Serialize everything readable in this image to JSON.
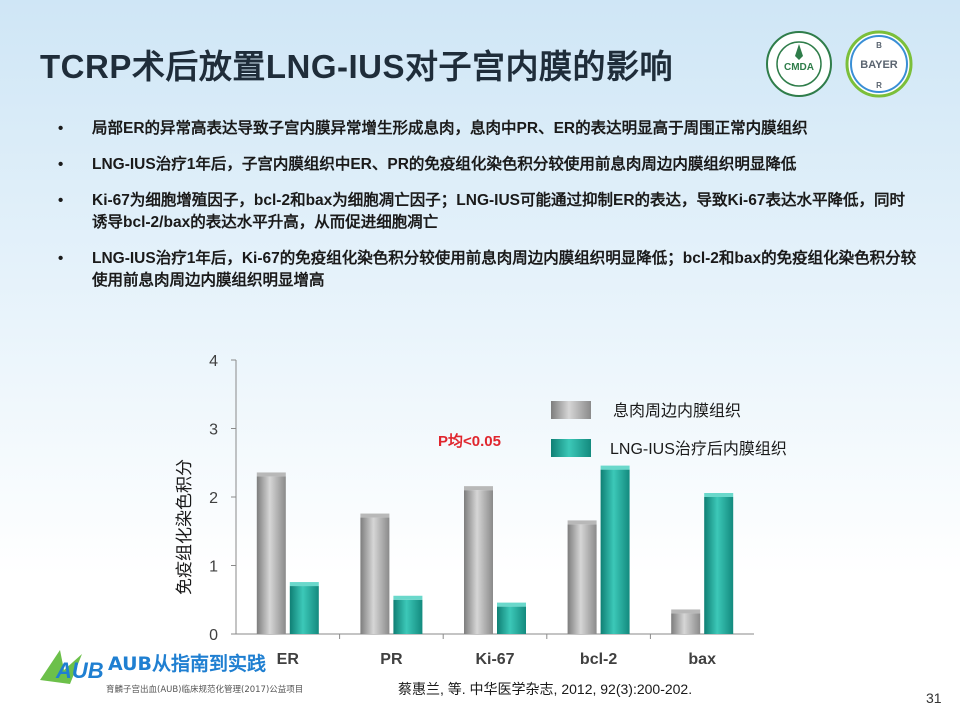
{
  "slide": {
    "title": "TCRP术后放置LNG-IUS对子宫内膜的影响",
    "bullets": [
      "局部ER的异常高表达导致子宫内膜异常增生形成息肉，息肉中PR、ER的表达明显高于周围正常内膜组织",
      "LNG-IUS治疗1年后，子宫内膜组织中ER、PR的免疫组化染色积分较使用前息肉周边内膜组织明显降低",
      "Ki-67为细胞增殖因子，bcl-2和bax为细胞凋亡因子；LNG-IUS可能通过抑制ER的表达，导致Ki-67表达水平降低，同时诱导bcl-2/bax的表达水平升高，从而促进细胞凋亡",
      "LNG-IUS治疗1年后，Ki-67的免疫组化染色积分较使用前息肉周边内膜组织明显降低；bcl-2和bax的免疫组化染色积分较使用前息肉周边内膜组织明显增高"
    ],
    "citation": "蔡惠兰, 等. 中华医学杂志, 2012, 92(3):200-202.",
    "page_number": "31",
    "logos": {
      "left": "CMDA",
      "right": "BAYER",
      "bottom": "AUB从指南到实践",
      "bottom_subtext": "育麟子宫出血(AUB)临床规范化管理(2017)公益项目"
    }
  },
  "chart_data": {
    "type": "bar",
    "categories": [
      "ER",
      "PR",
      "Ki-67",
      "bcl-2",
      "bax"
    ],
    "series": [
      {
        "name": "息肉周边内膜组织",
        "values": [
          2.3,
          1.7,
          2.1,
          1.6,
          0.3
        ],
        "color": "#9a9a9a"
      },
      {
        "name": "LNG-IUS治疗后内膜组织",
        "values": [
          0.7,
          0.5,
          0.4,
          2.4,
          2.0
        ],
        "color": "#1fa89a"
      }
    ],
    "ylabel": "免疫组化染色积分",
    "ylim": [
      0,
      4
    ],
    "yticks": [
      0,
      1,
      2,
      3,
      4
    ],
    "annotation": "P均<0.05",
    "grid": false,
    "legend_position": "right"
  }
}
